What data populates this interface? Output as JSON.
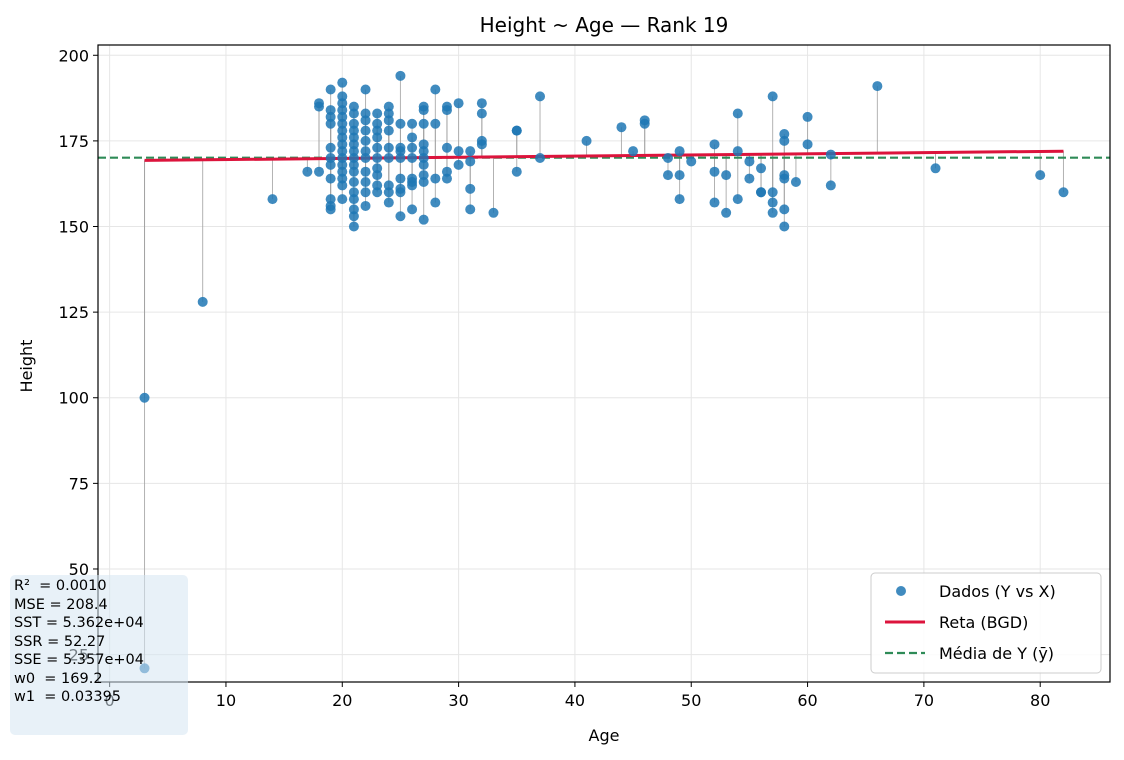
{
  "chart_data": {
    "type": "scatter",
    "title": "Height ~ Age — Rank 19",
    "xlabel": "Age",
    "ylabel": "Height",
    "xlim": [
      -1,
      86
    ],
    "ylim": [
      17,
      203
    ],
    "xticks": [
      0,
      10,
      20,
      30,
      40,
      50,
      60,
      70,
      80
    ],
    "yticks": [
      25,
      50,
      75,
      100,
      125,
      150,
      175,
      200
    ],
    "grid": true,
    "legend_position": "bottom-right",
    "colors": {
      "points": "#1f77b4",
      "regression": "#dc143c",
      "mean": "#2e8b57",
      "residual": "#a0a0a0"
    },
    "legend": [
      {
        "label": "Dados (Y vs X)",
        "kind": "point"
      },
      {
        "label": "Reta (BGD)",
        "kind": "line"
      },
      {
        "label": "Média de Y (ȳ)",
        "kind": "dashed"
      }
    ],
    "regression": {
      "w0": 169.2,
      "w1": 0.03395,
      "x_range": [
        3,
        82
      ]
    },
    "mean_y": 170.1,
    "points": [
      [
        3,
        100
      ],
      [
        3,
        21
      ],
      [
        8,
        128
      ],
      [
        14,
        158
      ],
      [
        17,
        166
      ],
      [
        18,
        186
      ],
      [
        18,
        185
      ],
      [
        18,
        166
      ],
      [
        19,
        190
      ],
      [
        19,
        184
      ],
      [
        19,
        182
      ],
      [
        19,
        180
      ],
      [
        19,
        173
      ],
      [
        19,
        170
      ],
      [
        19,
        168
      ],
      [
        19,
        164
      ],
      [
        19,
        158
      ],
      [
        19,
        156
      ],
      [
        19,
        155
      ],
      [
        20,
        192
      ],
      [
        20,
        188
      ],
      [
        20,
        186
      ],
      [
        20,
        184
      ],
      [
        20,
        182
      ],
      [
        20,
        180
      ],
      [
        20,
        178
      ],
      [
        20,
        176
      ],
      [
        20,
        174
      ],
      [
        20,
        172
      ],
      [
        20,
        170
      ],
      [
        20,
        168
      ],
      [
        20,
        166
      ],
      [
        20,
        164
      ],
      [
        20,
        162
      ],
      [
        20,
        158
      ],
      [
        21,
        185
      ],
      [
        21,
        183
      ],
      [
        21,
        180
      ],
      [
        21,
        178
      ],
      [
        21,
        176
      ],
      [
        21,
        174
      ],
      [
        21,
        172
      ],
      [
        21,
        170
      ],
      [
        21,
        168
      ],
      [
        21,
        166
      ],
      [
        21,
        163
      ],
      [
        21,
        160
      ],
      [
        21,
        158
      ],
      [
        21,
        155
      ],
      [
        21,
        153
      ],
      [
        21,
        150
      ],
      [
        22,
        190
      ],
      [
        22,
        183
      ],
      [
        22,
        181
      ],
      [
        22,
        178
      ],
      [
        22,
        175
      ],
      [
        22,
        172
      ],
      [
        22,
        170
      ],
      [
        22,
        166
      ],
      [
        22,
        163
      ],
      [
        22,
        160
      ],
      [
        22,
        156
      ],
      [
        23,
        183
      ],
      [
        23,
        180
      ],
      [
        23,
        178
      ],
      [
        23,
        176
      ],
      [
        23,
        173
      ],
      [
        23,
        170
      ],
      [
        23,
        167
      ],
      [
        23,
        165
      ],
      [
        23,
        162
      ],
      [
        23,
        160
      ],
      [
        24,
        185
      ],
      [
        24,
        183
      ],
      [
        24,
        181
      ],
      [
        24,
        178
      ],
      [
        24,
        173
      ],
      [
        24,
        170
      ],
      [
        24,
        162
      ],
      [
        24,
        160
      ],
      [
        24,
        157
      ],
      [
        25,
        194
      ],
      [
        25,
        180
      ],
      [
        25,
        173
      ],
      [
        25,
        172
      ],
      [
        25,
        170
      ],
      [
        25,
        164
      ],
      [
        25,
        161
      ],
      [
        25,
        160
      ],
      [
        25,
        153
      ],
      [
        26,
        180
      ],
      [
        26,
        176
      ],
      [
        26,
        173
      ],
      [
        26,
        170
      ],
      [
        26,
        164
      ],
      [
        26,
        163
      ],
      [
        26,
        162
      ],
      [
        26,
        155
      ],
      [
        27,
        185
      ],
      [
        27,
        184
      ],
      [
        27,
        180
      ],
      [
        27,
        174
      ],
      [
        27,
        172
      ],
      [
        27,
        170
      ],
      [
        27,
        168
      ],
      [
        27,
        165
      ],
      [
        27,
        163
      ],
      [
        27,
        152
      ],
      [
        28,
        190
      ],
      [
        28,
        180
      ],
      [
        28,
        164
      ],
      [
        28,
        157
      ],
      [
        29,
        185
      ],
      [
        29,
        184
      ],
      [
        29,
        173
      ],
      [
        29,
        166
      ],
      [
        29,
        164
      ],
      [
        30,
        186
      ],
      [
        30,
        172
      ],
      [
        30,
        168
      ],
      [
        31,
        172
      ],
      [
        31,
        169
      ],
      [
        31,
        161
      ],
      [
        31,
        155
      ],
      [
        32,
        186
      ],
      [
        32,
        183
      ],
      [
        32,
        175
      ],
      [
        32,
        174
      ],
      [
        33,
        154
      ],
      [
        35,
        178
      ],
      [
        35,
        178
      ],
      [
        35,
        166
      ],
      [
        37,
        188
      ],
      [
        37,
        170
      ],
      [
        41,
        175
      ],
      [
        44,
        179
      ],
      [
        45,
        172
      ],
      [
        46,
        181
      ],
      [
        46,
        180
      ],
      [
        48,
        170
      ],
      [
        48,
        165
      ],
      [
        49,
        172
      ],
      [
        49,
        165
      ],
      [
        49,
        158
      ],
      [
        50,
        169
      ],
      [
        52,
        174
      ],
      [
        52,
        166
      ],
      [
        52,
        157
      ],
      [
        53,
        165
      ],
      [
        53,
        154
      ],
      [
        54,
        183
      ],
      [
        54,
        172
      ],
      [
        54,
        158
      ],
      [
        55,
        169
      ],
      [
        55,
        164
      ],
      [
        56,
        167
      ],
      [
        56,
        160
      ],
      [
        56,
        160
      ],
      [
        57,
        188
      ],
      [
        57,
        160
      ],
      [
        57,
        157
      ],
      [
        57,
        154
      ],
      [
        58,
        177
      ],
      [
        58,
        175
      ],
      [
        58,
        165
      ],
      [
        58,
        164
      ],
      [
        58,
        155
      ],
      [
        58,
        150
      ],
      [
        59,
        163
      ],
      [
        60,
        182
      ],
      [
        60,
        174
      ],
      [
        62,
        171
      ],
      [
        62,
        162
      ],
      [
        66,
        191
      ],
      [
        71,
        167
      ],
      [
        80,
        165
      ],
      [
        82,
        160
      ]
    ]
  },
  "stats": {
    "lines": [
      "R²  = 0.0010",
      "MSE = 208.4",
      "SST = 5.362e+04",
      "SSR = 52.27",
      "SSE = 5.357e+04",
      "w0  = 169.2",
      "w1  = 0.03395"
    ]
  }
}
